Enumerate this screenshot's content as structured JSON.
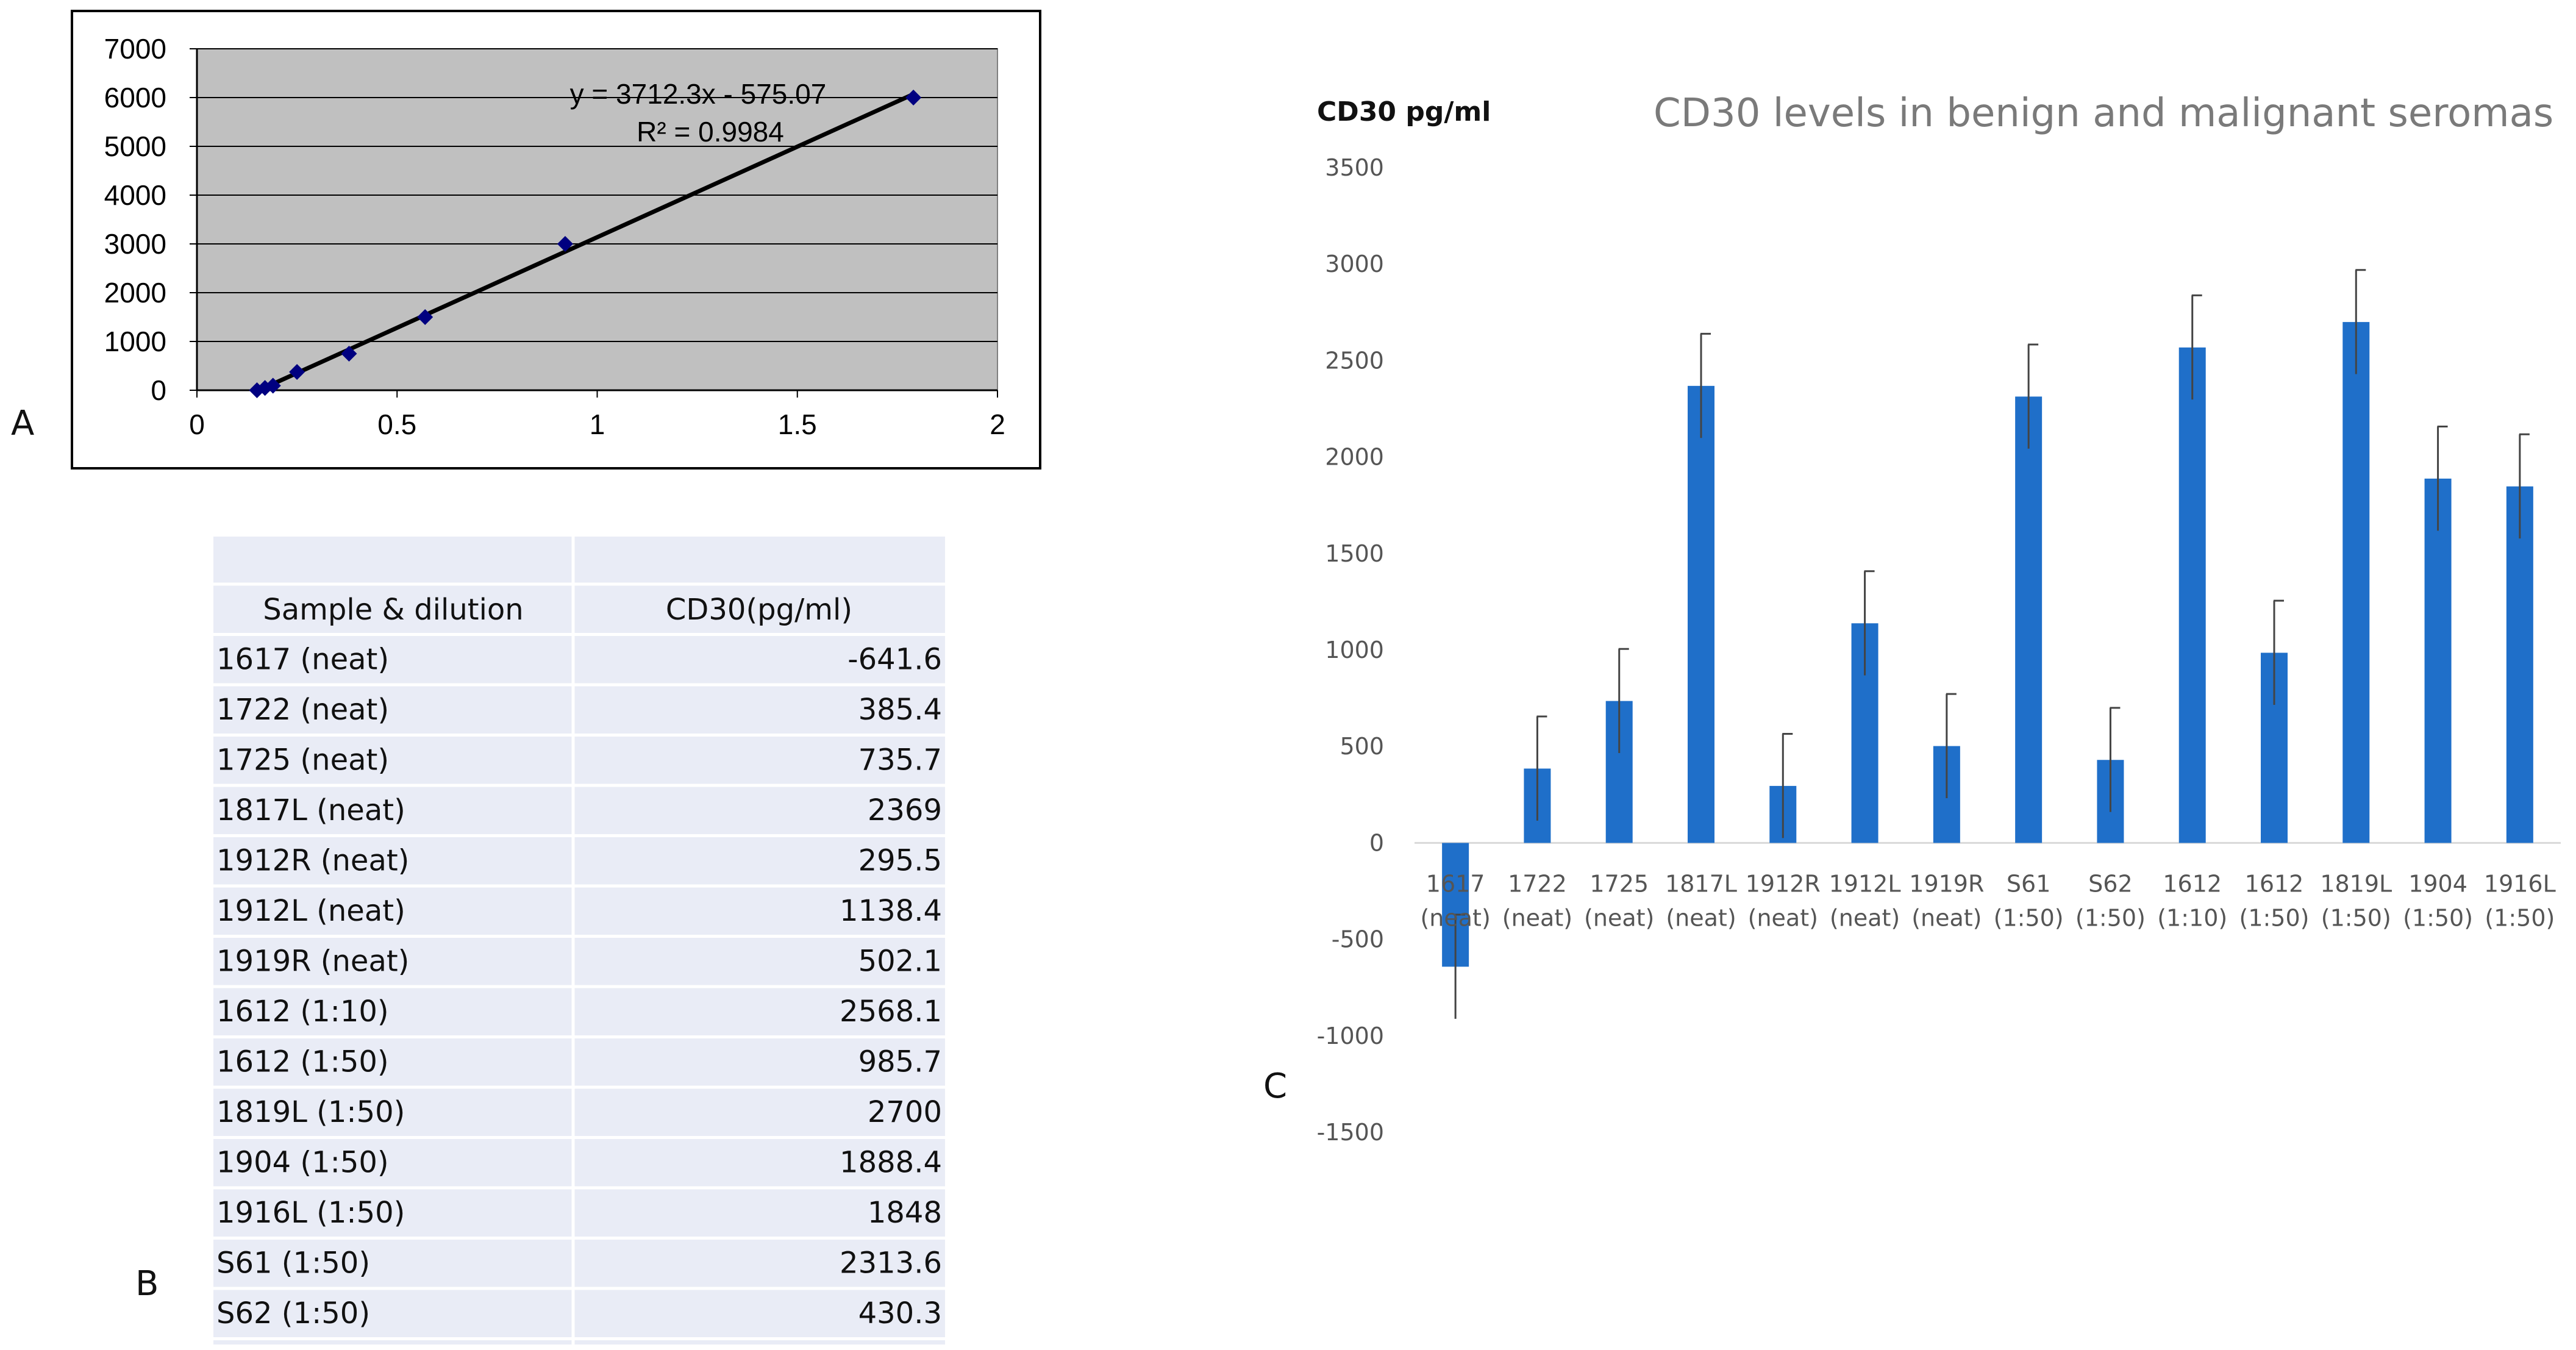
{
  "panels": {
    "a": "A",
    "b": "B",
    "c": "C"
  },
  "colors": {
    "plot_bg": "#c0c0c0",
    "line": "#000000",
    "marker": "#000080",
    "bar": "#1f6fc9",
    "table_bg": "#e9ecf6"
  },
  "chart_data": [
    {
      "type": "scatter",
      "panel": "A",
      "x": [
        0.15,
        0.17,
        0.19,
        0.25,
        0.38,
        0.57,
        0.92,
        1.79
      ],
      "y": [
        0,
        47,
        94,
        375,
        750,
        1500,
        3000,
        6000
      ],
      "trendline": {
        "slope": 3712.3,
        "intercept": -575.07,
        "x_range": [
          0.15,
          1.79
        ]
      },
      "equation": "y = 3712.3x - 575.07",
      "r_squared": "R² = 0.9984",
      "xlim": [
        0,
        2
      ],
      "ylim": [
        0,
        7000
      ],
      "xticks": [
        "0",
        "0.5",
        "1",
        "1.5",
        "2"
      ],
      "yticks": [
        "0",
        "1000",
        "2000",
        "3000",
        "4000",
        "5000",
        "6000",
        "7000"
      ],
      "grid": "horizontal"
    },
    {
      "type": "bar",
      "panel": "C",
      "title": "CD30 levels in benign and malignant seromas",
      "ylabel": "CD30 pg/ml",
      "categories": [
        [
          "1617",
          "(neat)"
        ],
        [
          "1722",
          "(neat)"
        ],
        [
          "1725",
          "(neat)"
        ],
        [
          "1817L",
          "(neat)"
        ],
        [
          "1912R",
          "(neat)"
        ],
        [
          "1912L",
          "(neat)"
        ],
        [
          "1919R",
          "(neat)"
        ],
        [
          "S61",
          "(1:50)"
        ],
        [
          "S62",
          "(1:50)"
        ],
        [
          "1612",
          "(1:10)"
        ],
        [
          "1612",
          "(1:50)"
        ],
        [
          "1819L",
          "(1:50)"
        ],
        [
          "1904",
          "(1:50)"
        ],
        [
          "1916L",
          "(1:50)"
        ]
      ],
      "values": [
        -641.6,
        385.4,
        735.7,
        2369,
        295.5,
        1138.4,
        502.1,
        2313.6,
        430.3,
        2568.1,
        985.7,
        2700,
        1888.4,
        1848
      ],
      "error": 270,
      "ylim": [
        -1500,
        3500
      ],
      "yticks": [
        "-1500",
        "-1000",
        "-500",
        "0",
        "500",
        "1000",
        "1500",
        "2000",
        "2500",
        "3000",
        "3500"
      ],
      "grid": false
    }
  ],
  "table": {
    "headers": [
      "Sample & dilution",
      "CD30(pg/ml)"
    ],
    "rows": [
      [
        "1617 (neat)",
        "-641.6"
      ],
      [
        "1722 (neat)",
        "385.4"
      ],
      [
        "1725  (neat)",
        "735.7"
      ],
      [
        "1817L (neat)",
        "2369"
      ],
      [
        "1912R (neat)",
        "295.5"
      ],
      [
        "1912L (neat)",
        "1138.4"
      ],
      [
        "1919R (neat)",
        "502.1"
      ],
      [
        "1612 (1:10)",
        "2568.1"
      ],
      [
        "1612 (1:50)",
        "985.7"
      ],
      [
        "1819L (1:50)",
        "2700"
      ],
      [
        "1904 (1:50)",
        "1888.4"
      ],
      [
        "1916L (1:50)",
        "1848"
      ],
      [
        "S61 (1:50)",
        "2313.6"
      ],
      [
        "S62 (1:50)",
        "430.3"
      ]
    ]
  }
}
